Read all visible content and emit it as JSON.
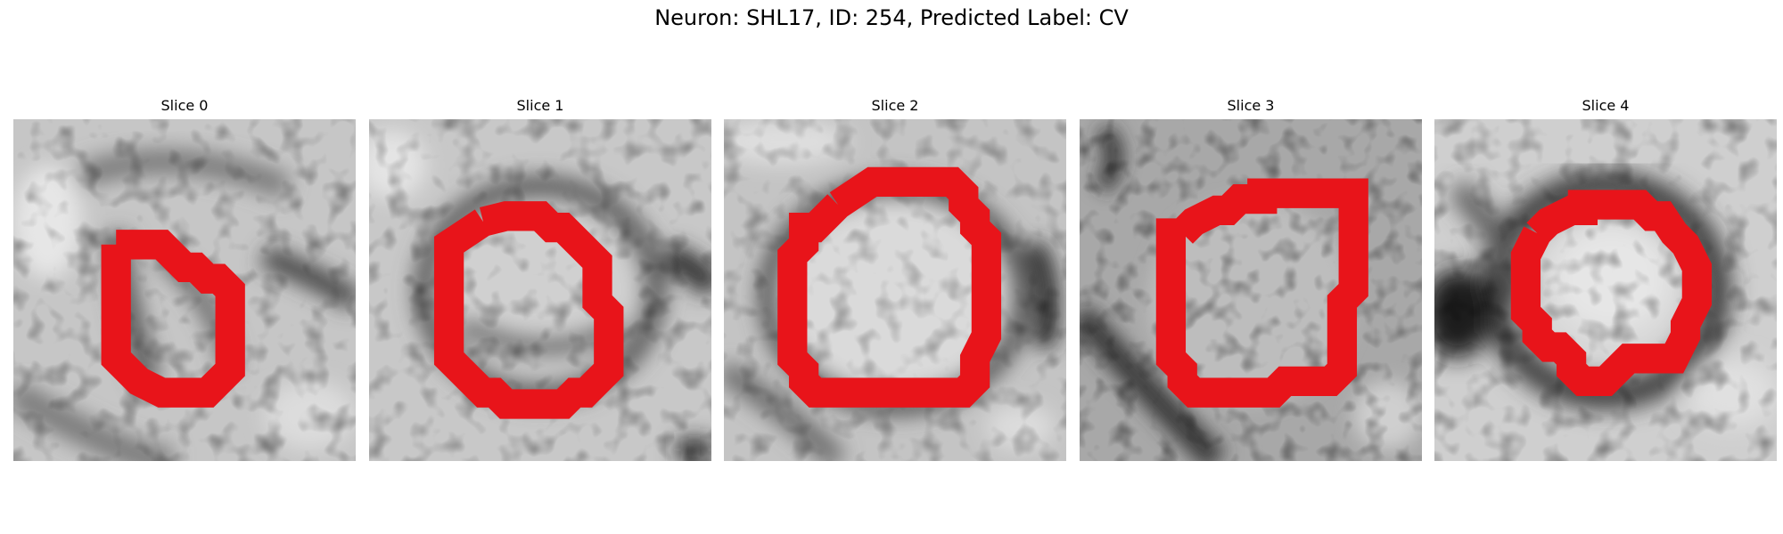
{
  "figure": {
    "title": "Neuron: SHL17, ID: 254, Predicted Label: CV"
  },
  "panels": [
    {
      "title": "Slice 0",
      "outline_color": "#e8141a"
    },
    {
      "title": "Slice 1",
      "outline_color": "#e8141a"
    },
    {
      "title": "Slice 2",
      "outline_color": "#e8141a"
    },
    {
      "title": "Slice 3",
      "outline_color": "#e8141a"
    },
    {
      "title": "Slice 4",
      "outline_color": "#e8141a"
    }
  ]
}
